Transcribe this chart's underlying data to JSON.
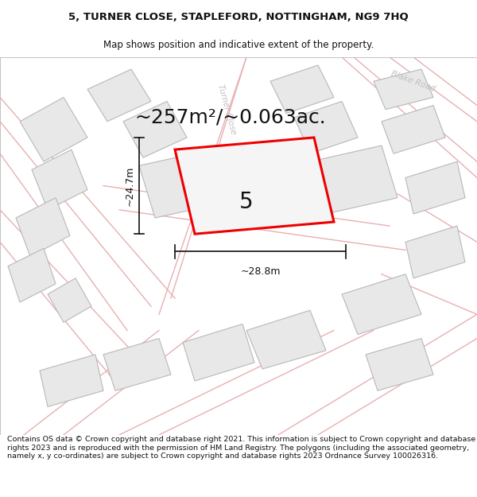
{
  "title_line1": "5, TURNER CLOSE, STAPLEFORD, NOTTINGHAM, NG9 7HQ",
  "title_line2": "Map shows position and indicative extent of the property.",
  "area_text": "~257m²/~0.063ac.",
  "property_number": "5",
  "dim_width": "~28.8m",
  "dim_height": "~24.7m",
  "footer_text": "Contains OS data © Crown copyright and database right 2021. This information is subject to Crown copyright and database rights 2023 and is reproduced with the permission of HM Land Registry. The polygons (including the associated geometry, namely x, y co-ordinates) are subject to Crown copyright and database rights 2023 Ordnance Survey 100026316.",
  "map_bg": "#ffffff",
  "map_border": "#cccccc",
  "road_line_color": "#e8b0b0",
  "plot_fill": "#e8e8e8",
  "plot_edge": "#b8b8b8",
  "highlight_edge": "#ee0000",
  "highlight_fill": "#f5f5f5",
  "road_label_color": "#bbbbbb",
  "text_color": "#111111",
  "dim_line_color": "#111111",
  "title_fontsize": 9.5,
  "subtitle_fontsize": 8.5,
  "area_fontsize": 18,
  "prop_num_fontsize": 20,
  "footer_fontsize": 6.8
}
